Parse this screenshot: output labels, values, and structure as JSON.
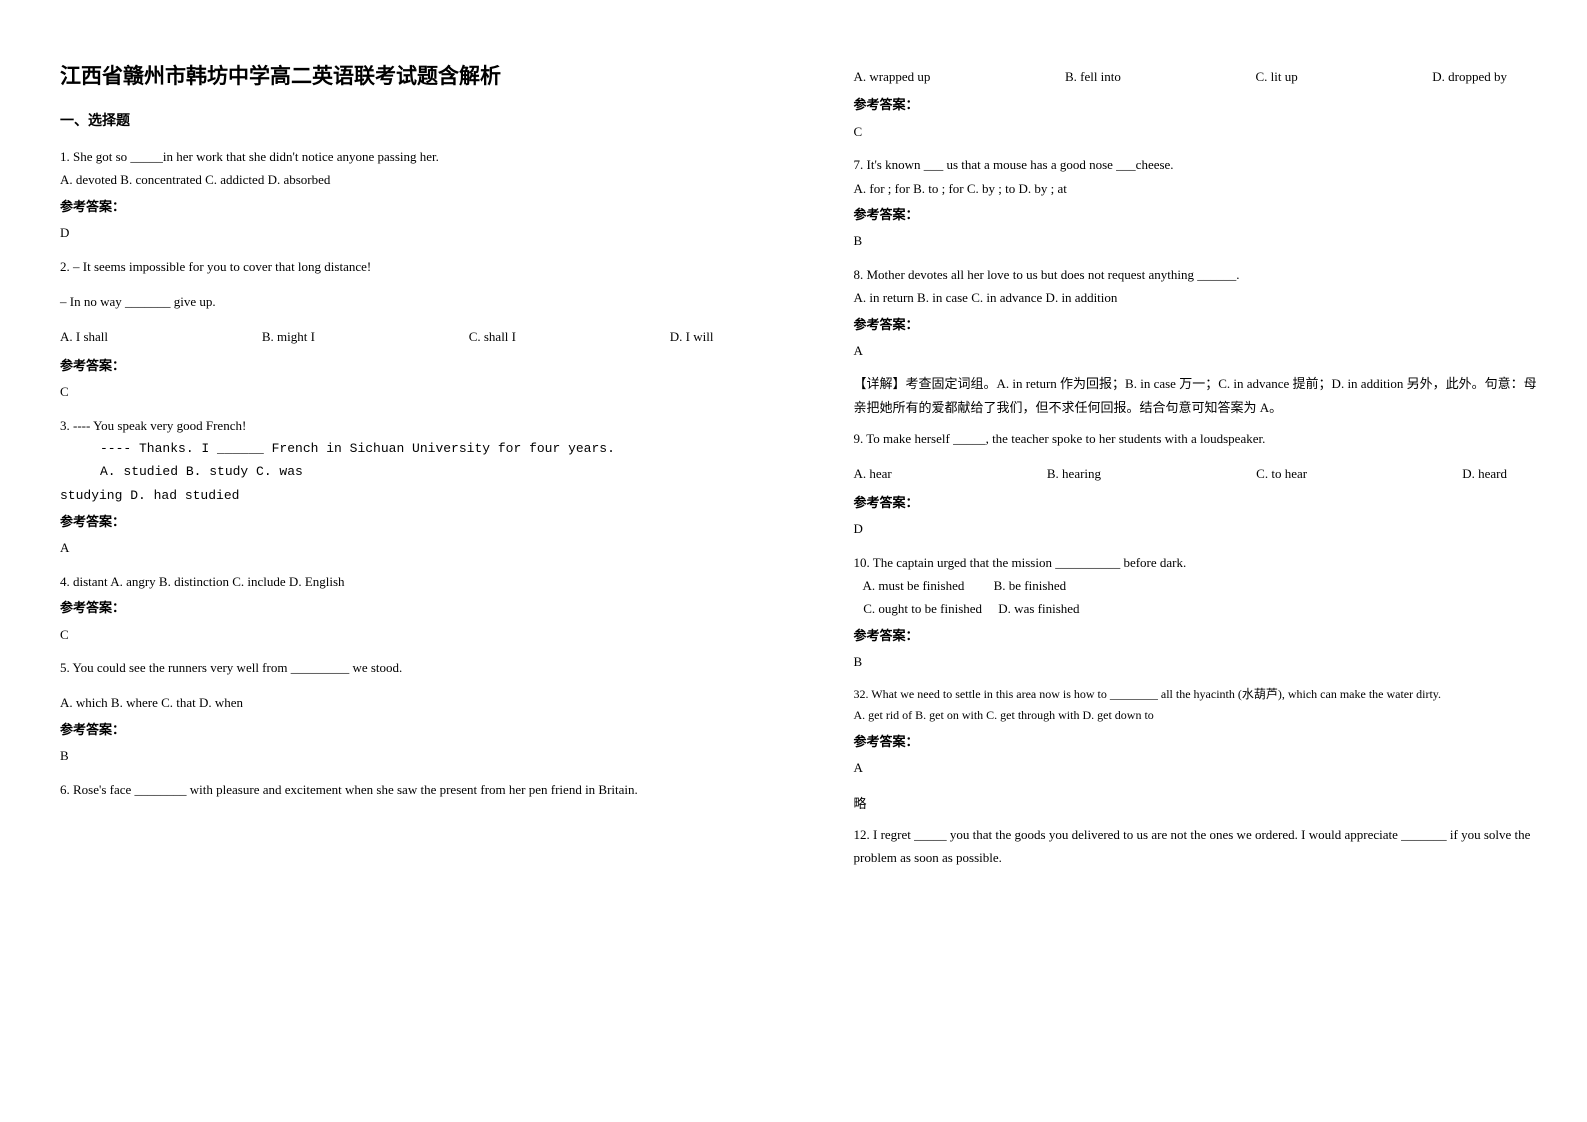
{
  "title": "江西省赣州市韩坊中学高二英语联考试题含解析",
  "section1_heading": "一、选择题",
  "answer_label": "参考答案：",
  "col_left": {
    "q1": {
      "text": "1. She got so _____in her work that she didn't notice anyone passing her.",
      "options": "A. devoted  B. concentrated  C. addicted  D. absorbed",
      "answer": "D"
    },
    "q2": {
      "line1": "2. – It seems impossible for you to cover that long distance!",
      "line2": "– In no way _______ give up.",
      "opts": {
        "a": "A. I shall",
        "b": "B. might I",
        "c": "C. shall I",
        "d": "D. I will"
      },
      "answer": "C"
    },
    "q3": {
      "line1": "3. ---- You speak very good French!",
      "line2": "---- Thanks. I ______ French in Sichuan University for four years.",
      "opts_line1": "A. studied                       B. study                 C. was",
      "opts_line2": "studying        D. had studied",
      "answer": "A"
    },
    "q4": {
      "text": "4. distant    A. angry       B. distinction   C. include      D. English",
      "answer": "C"
    },
    "q5": {
      "text": "5. You could see the runners very well from _________ we stood.",
      "opts": "A. which      B. where            C. that         D. when",
      "answer": "B"
    },
    "q6": {
      "text": "6. Rose's face ________ with pleasure and excitement when she saw the present from her pen friend in Britain."
    }
  },
  "col_right": {
    "q6_opts": {
      "a": "A. wrapped up",
      "b": "B. fell into",
      "c": "C. lit up",
      "d": "D. dropped by"
    },
    "q6_answer": "C",
    "q7": {
      "text": "7. It's known ___ us that a mouse has a good nose ___cheese.",
      "opts": "A. for ; for    B. to ; for    C. by ; to    D. by ; at",
      "answer": "B"
    },
    "q8": {
      "text": "8. Mother devotes all her love to us but does not request anything ______.",
      "opts": "A. in return      B. in case           C. in advance    D. in addition",
      "answer": "A",
      "explain": "【详解】考查固定词组。A. in return 作为回报；B. in case 万一；C. in advance 提前；D. in addition 另外，此外。句意：母亲把她所有的爱都献给了我们，但不求任何回报。结合句意可知答案为 A。"
    },
    "q9": {
      "text": "9. To make herself _____, the teacher spoke to her students with a loudspeaker.",
      "opts": {
        "a": "A. hear",
        "b": "B. hearing",
        "c": "C. to hear",
        "d": "D. heard"
      },
      "answer": "D"
    },
    "q10": {
      "text": "10. The captain urged that the mission __________ before dark.",
      "opts_l1": "   A. must be finished         B. be finished",
      "opts_l2": "   C. ought to be finished     D. was finished",
      "answer": "B"
    },
    "q11": {
      "text": "32. What we need to settle in this area now is how to ________ all the hyacinth (水葫芦), which can make the water dirty.",
      "opts": " A. get rid of    B. get on with   C. get through with   D. get down to",
      "answer": "A",
      "extra": "略"
    },
    "q12": {
      "text": "12. I regret _____ you that the goods you delivered to us are not the ones we ordered. I would appreciate _______ if you solve the problem as soon as possible."
    }
  }
}
